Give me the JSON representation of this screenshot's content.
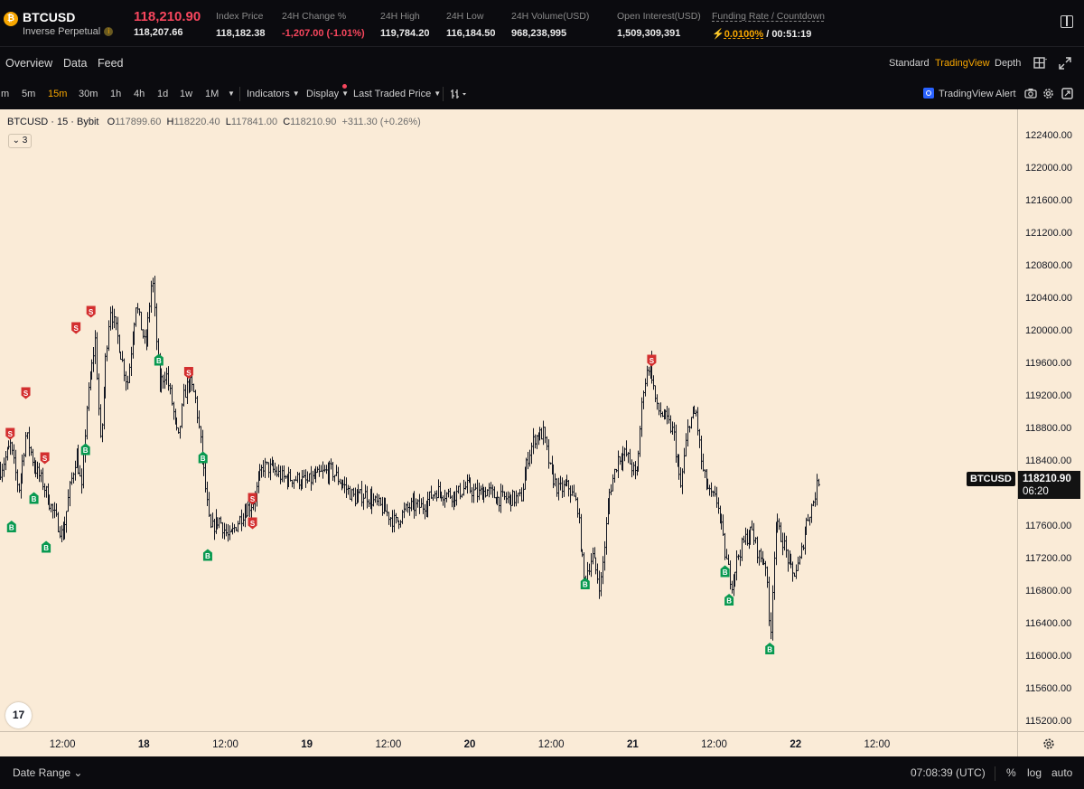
{
  "header": {
    "logo_glyph": "₿",
    "symbol": "BTCUSD",
    "contract_type": "Inverse Perpetual",
    "last_price": "118,210.90",
    "mark_price": "118,207.66",
    "stats": [
      {
        "label": "Index Price",
        "value": "118,182.38",
        "color": "#eaeaea"
      },
      {
        "label": "24H Change %",
        "value": "-1,207.00 (-1.01%)",
        "color": "#f6465d"
      },
      {
        "label": "24H High",
        "value": "119,784.20",
        "color": "#eaeaea"
      },
      {
        "label": "24H Low",
        "value": "116,184.50",
        "color": "#eaeaea"
      },
      {
        "label": "24H Volume(USD)",
        "value": "968,238,995",
        "color": "#eaeaea"
      },
      {
        "label": "Open Interest(USD)",
        "value": "1,509,309,391",
        "color": "#eaeaea"
      }
    ],
    "funding_label": "Funding Rate / Countdown",
    "funding_rate": "0.0100%",
    "countdown": "/ 00:51:19"
  },
  "tabs": {
    "left": [
      "Overview",
      "Data",
      "Feed"
    ],
    "views": [
      "Standard",
      "TradingView",
      "Depth"
    ],
    "active_view": "TradingView"
  },
  "toolbar": {
    "timeframes": [
      "m",
      "5m",
      "15m",
      "30m",
      "1h",
      "4h",
      "1d",
      "1w",
      "1M"
    ],
    "active_timeframe": "15m",
    "indicators": "Indicators",
    "display": "Display",
    "price_type": "Last Traded Price",
    "alert": "TradingView Alert"
  },
  "legend": {
    "title": "BTCUSD · 15 · Bybit",
    "o_label": "O",
    "o": "117899.60",
    "h_label": "H",
    "h": "118220.40",
    "l_label": "L",
    "l": "117841.00",
    "c_label": "C",
    "c": "118210.90",
    "change": "+311.30 (+0.26%)",
    "collapse_count": "3"
  },
  "chart_data": {
    "type": "line",
    "chart_style": "ohlc-bars",
    "background": "#faebd7",
    "bar_color": "#131722",
    "buy_color": "#089950",
    "sell_color": "#d32f2f",
    "y_ticks": [
      "122400.00",
      "122000.00",
      "121600.00",
      "121200.00",
      "120800.00",
      "120400.00",
      "120000.00",
      "119600.00",
      "119200.00",
      "118800.00",
      "118400.00",
      "118000.00",
      "117600.00",
      "117200.00",
      "116800.00",
      "116400.00",
      "116000.00",
      "115600.00",
      "115200.00"
    ],
    "ylim": [
      115200,
      122400
    ],
    "x_ticks": [
      {
        "label": "12:00",
        "bold": false
      },
      {
        "label": "18",
        "bold": true
      },
      {
        "label": "12:00",
        "bold": false
      },
      {
        "label": "19",
        "bold": true
      },
      {
        "label": "12:00",
        "bold": false
      },
      {
        "label": "20",
        "bold": true
      },
      {
        "label": "12:00",
        "bold": false
      },
      {
        "label": "21",
        "bold": true
      },
      {
        "label": "12:00",
        "bold": false
      },
      {
        "label": "22",
        "bold": true
      },
      {
        "label": "12:00",
        "bold": false
      }
    ],
    "x_tick_hours": [
      12,
      24,
      36,
      48,
      60,
      72,
      84,
      96,
      108,
      120,
      132
    ],
    "x_range_hours": [
      2.8,
      138
    ],
    "path_points": [
      [
        2.8,
        118300
      ],
      [
        4.3,
        118600
      ],
      [
        5.5,
        118050
      ],
      [
        6.6,
        118750
      ],
      [
        7.8,
        118350
      ],
      [
        9.0,
        118150
      ],
      [
        10.5,
        117800
      ],
      [
        12.0,
        117480
      ],
      [
        13.0,
        118050
      ],
      [
        14.0,
        118500
      ],
      [
        14.8,
        118050
      ],
      [
        15.5,
        119050
      ],
      [
        16.8,
        119900
      ],
      [
        17.6,
        118550
      ],
      [
        18.3,
        119650
      ],
      [
        19.0,
        120300
      ],
      [
        20.0,
        119950
      ],
      [
        21.5,
        119350
      ],
      [
        22.8,
        120350
      ],
      [
        24.2,
        119800
      ],
      [
        25.2,
        120700
      ],
      [
        26.2,
        119350
      ],
      [
        27.2,
        119500
      ],
      [
        28.0,
        119150
      ],
      [
        29.0,
        118650
      ],
      [
        29.8,
        119200
      ],
      [
        30.6,
        119400
      ],
      [
        31.5,
        119200
      ],
      [
        32.7,
        118350
      ],
      [
        33.7,
        117550
      ],
      [
        35.0,
        117700
      ],
      [
        36.5,
        117450
      ],
      [
        37.7,
        117650
      ],
      [
        38.8,
        117800
      ],
      [
        40.0,
        117900
      ],
      [
        41.5,
        118350
      ],
      [
        43.0,
        118300
      ],
      [
        44.5,
        118200
      ],
      [
        46.0,
        118200
      ],
      [
        48.0,
        118150
      ],
      [
        50.0,
        118250
      ],
      [
        51.5,
        118300
      ],
      [
        53.0,
        118150
      ],
      [
        55.0,
        117950
      ],
      [
        56.5,
        118000
      ],
      [
        58.0,
        117900
      ],
      [
        59.5,
        117800
      ],
      [
        61.0,
        117650
      ],
      [
        63.0,
        117850
      ],
      [
        65.0,
        117850
      ],
      [
        67.0,
        118050
      ],
      [
        68.5,
        118000
      ],
      [
        70.0,
        118000
      ],
      [
        71.5,
        118100
      ],
      [
        73.0,
        118000
      ],
      [
        74.5,
        118050
      ],
      [
        76.0,
        117950
      ],
      [
        78.0,
        117950
      ],
      [
        79.5,
        117950
      ],
      [
        80.5,
        118450
      ],
      [
        81.5,
        118700
      ],
      [
        82.8,
        118750
      ],
      [
        83.8,
        118300
      ],
      [
        85.0,
        118050
      ],
      [
        86.5,
        118100
      ],
      [
        87.8,
        117850
      ],
      [
        88.8,
        116950
      ],
      [
        90.0,
        117250
      ],
      [
        91.2,
        116850
      ],
      [
        92.5,
        118000
      ],
      [
        93.8,
        118450
      ],
      [
        95.0,
        118500
      ],
      [
        96.5,
        118200
      ],
      [
        97.5,
        119300
      ],
      [
        98.5,
        119650
      ],
      [
        99.5,
        119050
      ],
      [
        100.7,
        118950
      ],
      [
        102.0,
        118750
      ],
      [
        103.0,
        118050
      ],
      [
        104.2,
        118900
      ],
      [
        105.3,
        119000
      ],
      [
        106.2,
        118300
      ],
      [
        107.3,
        118000
      ],
      [
        108.5,
        117900
      ],
      [
        109.6,
        117250
      ],
      [
        110.5,
        116900
      ],
      [
        111.5,
        117250
      ],
      [
        112.5,
        117450
      ],
      [
        113.5,
        117550
      ],
      [
        114.5,
        117250
      ],
      [
        115.6,
        117150
      ],
      [
        116.2,
        116200
      ],
      [
        117.0,
        117650
      ],
      [
        118.0,
        117450
      ],
      [
        119.5,
        117000
      ],
      [
        120.5,
        117150
      ],
      [
        121.5,
        117650
      ],
      [
        122.5,
        117900
      ],
      [
        123.5,
        118250
      ]
    ],
    "signals": [
      {
        "type": "S",
        "t": 4.3,
        "price": 118750
      },
      {
        "type": "S",
        "t": 6.6,
        "price": 119250
      },
      {
        "type": "B",
        "t": 4.5,
        "price": 117600
      },
      {
        "type": "B",
        "t": 7.8,
        "price": 117950
      },
      {
        "type": "S",
        "t": 9.4,
        "price": 118450
      },
      {
        "type": "B",
        "t": 9.6,
        "price": 117350
      },
      {
        "type": "S",
        "t": 14.0,
        "price": 120050
      },
      {
        "type": "B",
        "t": 15.4,
        "price": 118550
      },
      {
        "type": "S",
        "t": 16.2,
        "price": 120250
      },
      {
        "type": "B",
        "t": 26.2,
        "price": 119650
      },
      {
        "type": "S",
        "t": 30.6,
        "price": 119500
      },
      {
        "type": "B",
        "t": 32.7,
        "price": 118450
      },
      {
        "type": "B",
        "t": 33.4,
        "price": 117250
      },
      {
        "type": "S",
        "t": 40.0,
        "price": 117950
      },
      {
        "type": "S",
        "t": 40.0,
        "price": 117650
      },
      {
        "type": "B",
        "t": 89.0,
        "price": 116900
      },
      {
        "type": "S",
        "t": 98.8,
        "price": 119650
      },
      {
        "type": "B",
        "t": 109.6,
        "price": 117050
      },
      {
        "type": "B",
        "t": 110.2,
        "price": 116700
      },
      {
        "type": "B",
        "t": 116.2,
        "price": 116100
      }
    ],
    "current_price": 118210.9
  },
  "price_axis": {
    "symbol_tag": "BTCUSD",
    "current_price": "118210.90",
    "bar_countdown": "06:20"
  },
  "tv_logo": "17",
  "bottom": {
    "date_range": "Date Range",
    "time": "07:08:39 (UTC)",
    "percent": "%",
    "log": "log",
    "auto": "auto"
  }
}
